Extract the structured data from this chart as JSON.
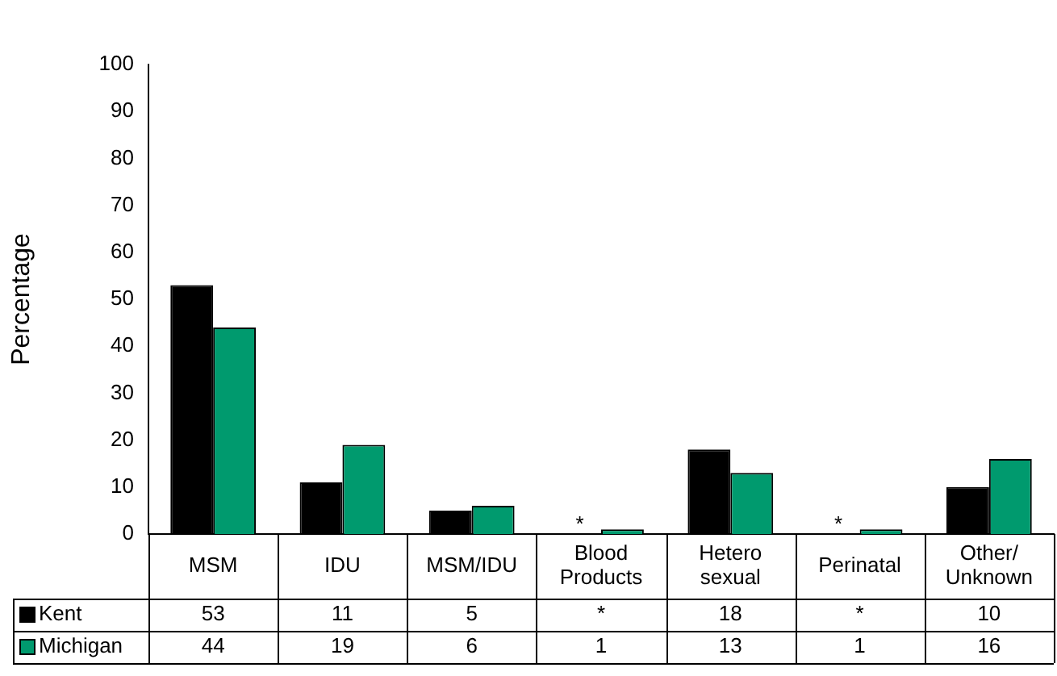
{
  "chart_data": {
    "type": "bar",
    "ylabel": "Percentage",
    "categories": [
      "MSM",
      "IDU",
      "MSM/IDU",
      "Blood Products",
      "Hetero sexual",
      "Perinatal",
      "Other/ Unknown"
    ],
    "series": [
      {
        "name": "Kent",
        "color": "#000000",
        "values": [
          53,
          11,
          5,
          null,
          18,
          null,
          10
        ],
        "value_labels": [
          "53",
          "11",
          "5",
          "*",
          "18",
          "*",
          "10"
        ]
      },
      {
        "name": "Michigan",
        "color": "#009a6e",
        "values": [
          44,
          19,
          6,
          1,
          13,
          1,
          16
        ],
        "value_labels": [
          "44",
          "19",
          "6",
          "1",
          "13",
          "1",
          "16"
        ]
      }
    ],
    "annotations": [
      {
        "text": "*",
        "x": "Blood Products",
        "y": 1
      },
      {
        "text": "*",
        "x": "Perinatal",
        "y": 1
      }
    ],
    "ylim": [
      0,
      100
    ],
    "yticks": [
      0,
      10,
      20,
      30,
      40,
      50,
      60,
      70,
      80,
      90,
      100
    ],
    "grid": false,
    "legend": "bottom"
  }
}
